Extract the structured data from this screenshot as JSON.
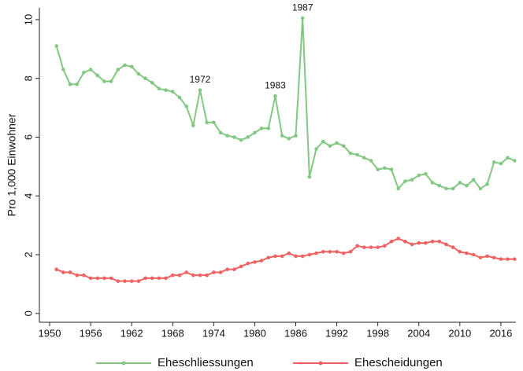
{
  "chart_data": {
    "type": "line",
    "x": [
      1951,
      1952,
      1953,
      1954,
      1955,
      1956,
      1957,
      1958,
      1959,
      1960,
      1961,
      1962,
      1963,
      1964,
      1965,
      1966,
      1967,
      1968,
      1969,
      1970,
      1971,
      1972,
      1973,
      1974,
      1975,
      1976,
      1977,
      1978,
      1979,
      1980,
      1981,
      1982,
      1983,
      1984,
      1985,
      1986,
      1987,
      1988,
      1989,
      1990,
      1991,
      1992,
      1993,
      1994,
      1995,
      1996,
      1997,
      1998,
      1999,
      2000,
      2001,
      2002,
      2003,
      2004,
      2005,
      2006,
      2007,
      2008,
      2009,
      2010,
      2011,
      2012,
      2013,
      2014,
      2015,
      2016,
      2017,
      2018
    ],
    "series": [
      {
        "name": "Eheschliessungen",
        "color": "#82c882",
        "values": [
          9.1,
          8.3,
          7.8,
          7.8,
          8.2,
          8.3,
          8.1,
          7.9,
          7.9,
          8.3,
          8.45,
          8.4,
          8.15,
          8.0,
          7.85,
          7.65,
          7.6,
          7.55,
          7.35,
          7.05,
          6.4,
          7.6,
          6.5,
          6.5,
          6.15,
          6.05,
          6.0,
          5.9,
          6.0,
          6.15,
          6.3,
          6.3,
          7.4,
          6.05,
          5.95,
          6.05,
          10.05,
          4.65,
          5.6,
          5.85,
          5.7,
          5.8,
          5.7,
          5.45,
          5.4,
          5.3,
          5.2,
          4.9,
          4.95,
          4.9,
          4.25,
          4.5,
          4.55,
          4.7,
          4.75,
          4.45,
          4.35,
          4.25,
          4.25,
          4.45,
          4.35,
          4.55,
          4.25,
          4.4,
          5.15,
          5.1,
          5.3,
          5.2
        ]
      },
      {
        "name": "Ehescheidungen",
        "color": "#f06262",
        "values": [
          1.5,
          1.4,
          1.4,
          1.3,
          1.3,
          1.2,
          1.2,
          1.2,
          1.2,
          1.1,
          1.1,
          1.1,
          1.1,
          1.2,
          1.2,
          1.2,
          1.2,
          1.3,
          1.3,
          1.4,
          1.3,
          1.3,
          1.3,
          1.4,
          1.4,
          1.5,
          1.5,
          1.6,
          1.7,
          1.75,
          1.8,
          1.9,
          1.95,
          1.95,
          2.05,
          1.95,
          1.95,
          2.0,
          2.05,
          2.1,
          2.1,
          2.1,
          2.05,
          2.1,
          2.3,
          2.25,
          2.25,
          2.25,
          2.3,
          2.45,
          2.55,
          2.45,
          2.35,
          2.4,
          2.4,
          2.45,
          2.45,
          2.35,
          2.25,
          2.1,
          2.05,
          2.0,
          1.9,
          1.95,
          1.9,
          1.85,
          1.85,
          1.85
        ]
      }
    ],
    "y_label": "Pro 1,000 Einwohner",
    "annotations": [
      {
        "text": "1972",
        "x": 1972
      },
      {
        "text": "1983",
        "x": 1983
      },
      {
        "text": "1987",
        "x": 1987
      }
    ],
    "xlim": [
      1948.5,
      2018.2
    ],
    "xticks": [
      1950,
      1956,
      1962,
      1968,
      1974,
      1980,
      1986,
      1992,
      1998,
      2004,
      2010,
      2016
    ],
    "ylim": [
      -0.3,
      10.4
    ],
    "yticks": [
      0,
      2,
      4,
      6,
      8,
      10
    ],
    "legend": "bottom"
  }
}
